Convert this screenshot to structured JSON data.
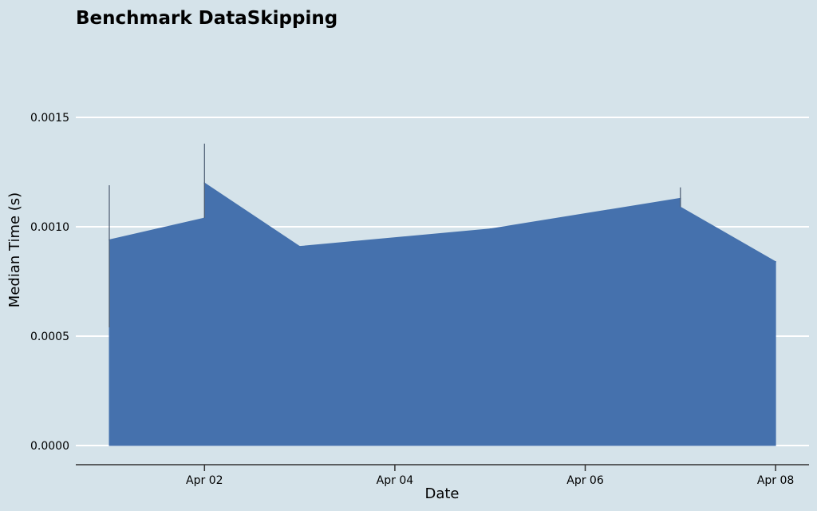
{
  "chart_data": {
    "type": "area",
    "title": "Benchmark DataSkipping",
    "xlabel": "Date",
    "ylabel": "Median Time (s)",
    "x_ticks": [
      "Apr 02",
      "Apr 04",
      "Apr 06",
      "Apr 08"
    ],
    "y_ticks": [
      "0.0000",
      "0.0005",
      "0.0010",
      "0.0015"
    ],
    "ylim": [
      0,
      0.0015
    ],
    "grid": "horizontal",
    "colors": {
      "background": "#d5e3ea",
      "fill": "#4571ad",
      "spike": "#4a5a70",
      "grid": "#ffffff",
      "axis": "#333333"
    },
    "x": [
      "2024-04-01",
      "2024-04-02",
      "2024-04-02",
      "2024-04-03",
      "2024-04-05",
      "2024-04-07",
      "2024-04-07",
      "2024-04-08"
    ],
    "series": [
      {
        "values": [
          0.00094,
          0.00104,
          0.0012,
          0.00091,
          0.00099,
          0.00113,
          0.00109,
          0.00084
        ]
      }
    ],
    "spikes": [
      {
        "x": "2024-04-01",
        "low": 0.00054,
        "high": 0.00119
      },
      {
        "x": "2024-04-02",
        "low": 0.00104,
        "high": 0.00138
      },
      {
        "x": "2024-04-07",
        "low": 0.00109,
        "high": 0.00118
      }
    ]
  }
}
